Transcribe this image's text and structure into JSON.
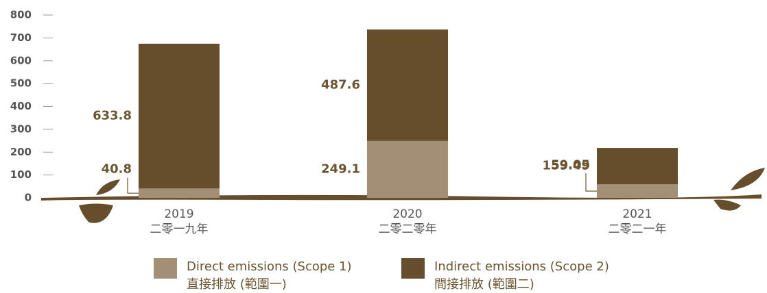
{
  "chart_data": {
    "type": "stacked_bar",
    "categories": [
      "2019",
      "2020",
      "2021"
    ],
    "category_subtitles": [
      "二零一九年",
      "二零二零年",
      "二零二一年"
    ],
    "series": [
      {
        "name": "Direct emissions (Scope 1)",
        "name_zh": "直接排放 (範圍一)",
        "color": "#a38f75",
        "values": [
          40.8,
          249.1,
          59.05
        ]
      },
      {
        "name": "Indirect emissions (Scope 2)",
        "name_zh": "間接排放 (範圍二)",
        "color": "#664d2b",
        "values": [
          633.8,
          487.6,
          159.49
        ]
      }
    ],
    "ylim": [
      0,
      800
    ],
    "yticks": [
      0,
      100,
      200,
      300,
      400,
      500,
      600,
      700,
      800
    ]
  }
}
